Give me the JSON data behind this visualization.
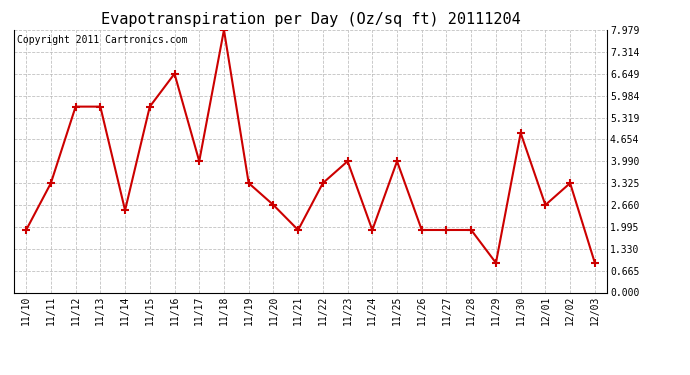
{
  "title": "Evapotranspiration per Day (Oz/sq ft) 20111204",
  "copyright_text": "Copyright 2011 Cartronics.com",
  "x_labels": [
    "11/10",
    "11/11",
    "11/12",
    "11/13",
    "11/14",
    "11/15",
    "11/16",
    "11/17",
    "11/18",
    "11/19",
    "11/20",
    "11/21",
    "11/22",
    "11/23",
    "11/24",
    "11/25",
    "11/26",
    "11/27",
    "11/28",
    "11/29",
    "11/30",
    "12/01",
    "12/02",
    "12/03"
  ],
  "y_values": [
    1.9,
    3.325,
    5.65,
    5.65,
    2.5,
    5.65,
    6.65,
    3.99,
    7.979,
    3.325,
    2.66,
    1.9,
    3.325,
    3.99,
    1.9,
    3.99,
    1.9,
    1.9,
    1.9,
    0.9,
    4.85,
    2.66,
    3.325,
    0.9
  ],
  "y_ticks": [
    0.0,
    0.665,
    1.33,
    1.995,
    2.66,
    3.325,
    3.99,
    4.654,
    5.319,
    5.984,
    6.649,
    7.314,
    7.979
  ],
  "y_min": 0.0,
  "y_max": 7.979,
  "line_color": "#cc0000",
  "marker_color": "#cc0000",
  "bg_color": "#ffffff",
  "grid_color": "#bbbbbb",
  "title_fontsize": 11,
  "copyright_fontsize": 7,
  "tick_fontsize": 7
}
